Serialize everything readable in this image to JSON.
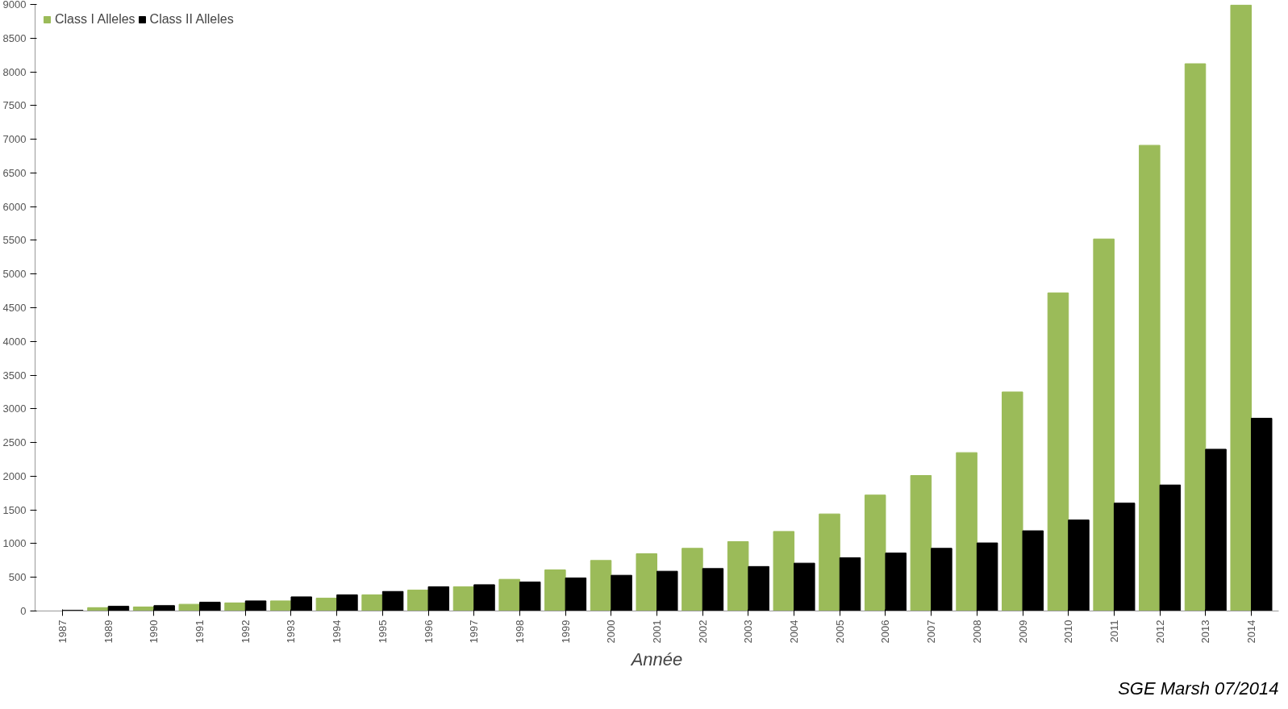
{
  "chart_data": {
    "type": "bar",
    "xlabel": "Année",
    "annotations": [
      "SGE Marsh 07/2014"
    ],
    "categories": [
      "1987",
      "1989",
      "1990",
      "1991",
      "1992",
      "1993",
      "1994",
      "1995",
      "1996",
      "1997",
      "1998",
      "1999",
      "2000",
      "2001",
      "2002",
      "2003",
      "2004",
      "2005",
      "2006",
      "2007",
      "2008",
      "2009",
      "2010",
      "2011",
      "2012",
      "2013",
      "2014"
    ],
    "series": [
      {
        "name": "Class I Alleles",
        "color": "#9bbb59",
        "values": [
          0,
          50,
          60,
          100,
          120,
          150,
          190,
          240,
          310,
          360,
          470,
          610,
          750,
          850,
          930,
          1030,
          1180,
          1440,
          1720,
          2010,
          2350,
          3250,
          4720,
          5520,
          6910,
          8120,
          8990
        ]
      },
      {
        "name": "Class II Alleles",
        "color": "#000000",
        "values": [
          10,
          70,
          80,
          130,
          150,
          210,
          240,
          290,
          360,
          390,
          430,
          490,
          530,
          590,
          630,
          660,
          710,
          790,
          860,
          930,
          1010,
          1190,
          1350,
          1600,
          1870,
          2400,
          2860
        ]
      }
    ],
    "ylim": [
      0,
      9000
    ],
    "yticks": [
      0,
      500,
      1000,
      1500,
      2000,
      2500,
      3000,
      3500,
      4000,
      4500,
      5000,
      5500,
      6000,
      6500,
      7000,
      7500,
      8000,
      8500,
      9000
    ],
    "grid": false,
    "legend": "top left"
  }
}
